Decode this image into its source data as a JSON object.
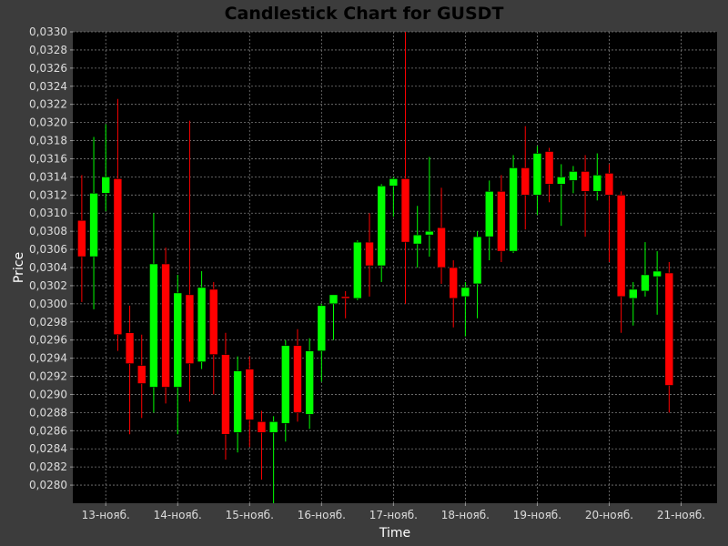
{
  "chart_data": {
    "type": "candlestick",
    "title": "Candlestick Chart for GUSDT",
    "xlabel": "Time",
    "ylabel": "Price",
    "ylim": [
      0.0278,
      0.033
    ],
    "y_ticks": [
      "0,0280",
      "0,0282",
      "0,0284",
      "0,0286",
      "0,0288",
      "0,0290",
      "0,0292",
      "0,0294",
      "0,0296",
      "0,0298",
      "0,0300",
      "0,0302",
      "0,0304",
      "0,0306",
      "0,0308",
      "0,0310",
      "0,0312",
      "0,0314",
      "0,0316",
      "0,0318",
      "0,0320",
      "0,0322",
      "0,0324",
      "0,0326",
      "0,0328",
      "0,0330"
    ],
    "y_tick_values": [
      0.028,
      0.0282,
      0.0284,
      0.0286,
      0.0288,
      0.029,
      0.0292,
      0.0294,
      0.0296,
      0.0298,
      0.03,
      0.0302,
      0.0304,
      0.0306,
      0.0308,
      0.031,
      0.0312,
      0.0314,
      0.0316,
      0.0318,
      0.032,
      0.0322,
      0.0324,
      0.0326,
      0.0328,
      0.033
    ],
    "x_ticks": [
      "13-нояб.",
      "14-нояб.",
      "15-нояб.",
      "16-нояб.",
      "17-нояб.",
      "18-нояб.",
      "19-нояб.",
      "20-нояб.",
      "21-нояб."
    ],
    "x_tick_times": [
      0,
      24,
      48,
      72,
      96,
      120,
      144,
      168,
      192
    ],
    "x_range_hours": [
      -11,
      204
    ],
    "grid": true,
    "colors": {
      "up": "#00ff00",
      "down": "#ff0000",
      "background": "#000000",
      "grid": "#7a7a7a",
      "frame": "#3c3c3c"
    },
    "candles": [
      {
        "t": -8,
        "open": 0.03092,
        "high": 0.03142,
        "low": 0.03002,
        "close": 0.03052
      },
      {
        "t": -4,
        "open": 0.03052,
        "high": 0.03184,
        "low": 0.02994,
        "close": 0.03122
      },
      {
        "t": 0,
        "open": 0.03122,
        "high": 0.03198,
        "low": 0.03102,
        "close": 0.0314
      },
      {
        "t": 4,
        "open": 0.03138,
        "high": 0.03226,
        "low": 0.02948,
        "close": 0.02966
      },
      {
        "t": 8,
        "open": 0.02968,
        "high": 0.02998,
        "low": 0.02856,
        "close": 0.02934
      },
      {
        "t": 12,
        "open": 0.02932,
        "high": 0.02966,
        "low": 0.02874,
        "close": 0.02912
      },
      {
        "t": 16,
        "open": 0.02908,
        "high": 0.031,
        "low": 0.0288,
        "close": 0.03044
      },
      {
        "t": 20,
        "open": 0.03044,
        "high": 0.03062,
        "low": 0.0289,
        "close": 0.02908
      },
      {
        "t": 24,
        "open": 0.02908,
        "high": 0.03032,
        "low": 0.02856,
        "close": 0.03012
      },
      {
        "t": 28,
        "open": 0.0301,
        "high": 0.03202,
        "low": 0.02892,
        "close": 0.02934
      },
      {
        "t": 32,
        "open": 0.02936,
        "high": 0.03036,
        "low": 0.02928,
        "close": 0.03018
      },
      {
        "t": 36,
        "open": 0.03016,
        "high": 0.03024,
        "low": 0.029,
        "close": 0.02944
      },
      {
        "t": 40,
        "open": 0.02944,
        "high": 0.02968,
        "low": 0.02828,
        "close": 0.02856
      },
      {
        "t": 44,
        "open": 0.02858,
        "high": 0.02942,
        "low": 0.02836,
        "close": 0.02926
      },
      {
        "t": 48,
        "open": 0.02928,
        "high": 0.02942,
        "low": 0.02842,
        "close": 0.02872
      },
      {
        "t": 52,
        "open": 0.0287,
        "high": 0.02882,
        "low": 0.02806,
        "close": 0.02858
      },
      {
        "t": 56,
        "open": 0.02858,
        "high": 0.02876,
        "low": 0.02778,
        "close": 0.0287
      },
      {
        "t": 60,
        "open": 0.02868,
        "high": 0.0296,
        "low": 0.02848,
        "close": 0.02954
      },
      {
        "t": 64,
        "open": 0.02954,
        "high": 0.02972,
        "low": 0.0287,
        "close": 0.0288
      },
      {
        "t": 68,
        "open": 0.02878,
        "high": 0.02962,
        "low": 0.02862,
        "close": 0.02948
      },
      {
        "t": 72,
        "open": 0.02948,
        "high": 0.03,
        "low": 0.02914,
        "close": 0.02998
      },
      {
        "t": 76,
        "open": 0.03,
        "high": 0.0301,
        "low": 0.0296,
        "close": 0.0301
      },
      {
        "t": 80,
        "open": 0.03008,
        "high": 0.03014,
        "low": 0.02984,
        "close": 0.03006
      },
      {
        "t": 84,
        "open": 0.03006,
        "high": 0.0307,
        "low": 0.03004,
        "close": 0.03068
      },
      {
        "t": 88,
        "open": 0.03068,
        "high": 0.031,
        "low": 0.03008,
        "close": 0.03042
      },
      {
        "t": 92,
        "open": 0.03042,
        "high": 0.03132,
        "low": 0.03024,
        "close": 0.0313
      },
      {
        "t": 96,
        "open": 0.0313,
        "high": 0.0314,
        "low": 0.03096,
        "close": 0.03138
      },
      {
        "t": 100,
        "open": 0.03138,
        "high": 0.033,
        "low": 0.03,
        "close": 0.03068
      },
      {
        "t": 104,
        "open": 0.03066,
        "high": 0.03108,
        "low": 0.0304,
        "close": 0.03076
      },
      {
        "t": 108,
        "open": 0.03076,
        "high": 0.03162,
        "low": 0.03052,
        "close": 0.0308
      },
      {
        "t": 112,
        "open": 0.03084,
        "high": 0.03128,
        "low": 0.03022,
        "close": 0.0304
      },
      {
        "t": 116,
        "open": 0.0304,
        "high": 0.03048,
        "low": 0.02974,
        "close": 0.03006
      },
      {
        "t": 120,
        "open": 0.03008,
        "high": 0.03024,
        "low": 0.02964,
        "close": 0.03018
      },
      {
        "t": 124,
        "open": 0.03022,
        "high": 0.0308,
        "low": 0.02984,
        "close": 0.03074
      },
      {
        "t": 128,
        "open": 0.03074,
        "high": 0.03136,
        "low": 0.03048,
        "close": 0.03124
      },
      {
        "t": 132,
        "open": 0.03124,
        "high": 0.03142,
        "low": 0.03046,
        "close": 0.03058
      },
      {
        "t": 136,
        "open": 0.03058,
        "high": 0.03164,
        "low": 0.03056,
        "close": 0.0315
      },
      {
        "t": 140,
        "open": 0.0315,
        "high": 0.03196,
        "low": 0.03082,
        "close": 0.0312
      },
      {
        "t": 144,
        "open": 0.0312,
        "high": 0.03174,
        "low": 0.03098,
        "close": 0.03166
      },
      {
        "t": 148,
        "open": 0.03168,
        "high": 0.03172,
        "low": 0.03112,
        "close": 0.03132
      },
      {
        "t": 152,
        "open": 0.03132,
        "high": 0.03154,
        "low": 0.03086,
        "close": 0.0314
      },
      {
        "t": 156,
        "open": 0.03136,
        "high": 0.03152,
        "low": 0.03122,
        "close": 0.03146
      },
      {
        "t": 160,
        "open": 0.03146,
        "high": 0.03164,
        "low": 0.03074,
        "close": 0.03124
      },
      {
        "t": 164,
        "open": 0.03124,
        "high": 0.03166,
        "low": 0.03114,
        "close": 0.03142
      },
      {
        "t": 168,
        "open": 0.03144,
        "high": 0.03154,
        "low": 0.03046,
        "close": 0.0312
      },
      {
        "t": 172,
        "open": 0.0312,
        "high": 0.03124,
        "low": 0.02968,
        "close": 0.03008
      },
      {
        "t": 176,
        "open": 0.03006,
        "high": 0.03024,
        "low": 0.02976,
        "close": 0.03016
      },
      {
        "t": 180,
        "open": 0.03014,
        "high": 0.03068,
        "low": 0.03008,
        "close": 0.03032
      },
      {
        "t": 184,
        "open": 0.0303,
        "high": 0.03058,
        "low": 0.02988,
        "close": 0.03036
      },
      {
        "t": 188,
        "open": 0.03034,
        "high": 0.03046,
        "low": 0.0288,
        "close": 0.0291
      }
    ]
  }
}
